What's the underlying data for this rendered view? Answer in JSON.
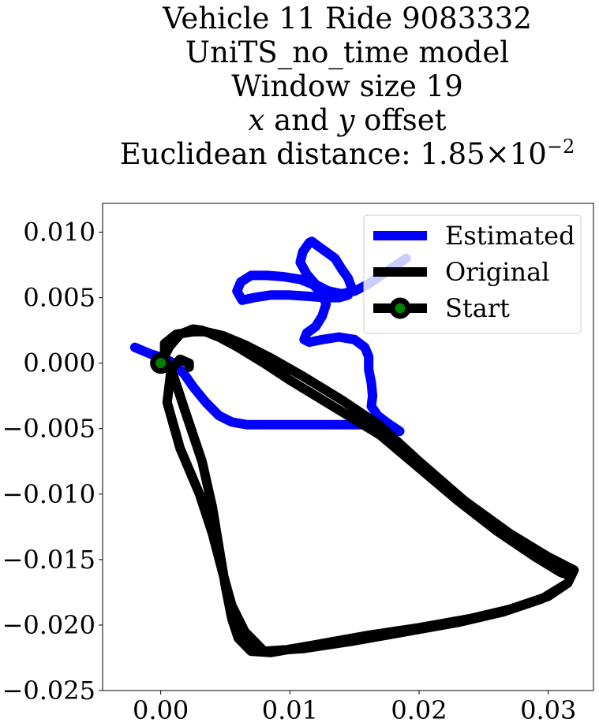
{
  "chart_data": {
    "type": "line",
    "title_lines": [
      "Vehicle 11 Ride 9083332",
      "UniTS_no_time model",
      "Window size 19"
    ],
    "title_offset_line": {
      "x": "x",
      "and": " and ",
      "y": "y",
      "rest": " offset"
    },
    "title_distance": {
      "label": "Euclidean distance: ",
      "mantissa": "1.85",
      "times": "×",
      "base": "10",
      "exponent": "−2"
    },
    "xlabel": "",
    "ylabel": "",
    "xlim": [
      -0.0045,
      0.0335
    ],
    "ylim": [
      -0.025,
      0.0122
    ],
    "xticks": [
      0.0,
      0.01,
      0.02,
      0.03
    ],
    "xtick_labels": [
      "0.00",
      "0.01",
      "0.02",
      "0.03"
    ],
    "yticks": [
      0.01,
      0.005,
      0.0,
      -0.005,
      -0.01,
      -0.015,
      -0.02,
      -0.025
    ],
    "ytick_labels": [
      "0.010",
      "0.005",
      "0.000",
      "−0.005",
      "−0.010",
      "−0.015",
      "−0.020",
      "−0.025"
    ],
    "grid": false,
    "legend_position": "top-right",
    "series": [
      {
        "name": "Estimated",
        "color": "#0000ff",
        "x": [
          0.019,
          0.0175,
          0.016,
          0.015,
          0.014,
          0.013,
          0.012,
          0.0113,
          0.0108,
          0.011,
          0.0115,
          0.0117,
          0.0121,
          0.0128,
          0.0135,
          0.014,
          0.0145,
          0.0148,
          0.0145,
          0.0138,
          0.0128,
          0.0115,
          0.01,
          0.0085,
          0.0072,
          0.0063,
          0.0059,
          0.0062,
          0.007,
          0.0082,
          0.0095,
          0.0108,
          0.0118,
          0.0125,
          0.0128,
          0.0125,
          0.012,
          0.0113,
          0.0111,
          0.0115,
          0.0125,
          0.0138,
          0.015,
          0.0158,
          0.0161,
          0.0161,
          0.0163,
          0.0164,
          0.0163,
          0.0168,
          0.0176,
          0.0182,
          0.0185,
          0.0175,
          0.016,
          0.014,
          0.012,
          0.01,
          0.0082,
          0.0067,
          0.0055,
          0.0045,
          0.0035,
          0.0025,
          0.0018,
          0.001,
          0.0002,
          -0.0008,
          -0.002
        ],
        "y": [
          0.008,
          0.007,
          0.006,
          0.0055,
          0.0053,
          0.0055,
          0.006,
          0.0068,
          0.0077,
          0.0085,
          0.0092,
          0.0093,
          0.009,
          0.0085,
          0.008,
          0.0072,
          0.0065,
          0.0057,
          0.0052,
          0.005,
          0.005,
          0.0051,
          0.0052,
          0.0052,
          0.005,
          0.0048,
          0.0055,
          0.0062,
          0.0067,
          0.0067,
          0.0066,
          0.0064,
          0.006,
          0.0053,
          0.0045,
          0.0036,
          0.0028,
          0.0023,
          0.0018,
          0.0016,
          0.0018,
          0.002,
          0.0018,
          0.0012,
          0.0005,
          -0.0005,
          -0.0015,
          -0.0025,
          -0.0033,
          -0.004,
          -0.0046,
          -0.005,
          -0.0052,
          -0.0048,
          -0.0047,
          -0.0047,
          -0.0047,
          -0.0047,
          -0.0047,
          -0.0047,
          -0.0045,
          -0.004,
          -0.003,
          -0.0018,
          -0.0008,
          0.0,
          0.0004,
          0.0007,
          0.0012
        ]
      },
      {
        "name": "Original",
        "color": "#000000",
        "x": [
          0.0,
          0.0007,
          0.0015,
          0.0025,
          0.0032,
          0.0045,
          0.006,
          0.008,
          0.01,
          0.012,
          0.0145,
          0.017,
          0.02,
          0.023,
          0.026,
          0.029,
          0.031,
          0.0318,
          0.0315,
          0.03,
          0.027,
          0.024,
          0.02,
          0.016,
          0.012,
          0.0085,
          0.007,
          0.006,
          0.0055,
          0.005,
          0.0045,
          0.004,
          0.0032,
          0.002,
          0.001,
          0.0003,
          0.0003,
          0.0012,
          0.0025,
          0.0035,
          0.0048,
          0.0065,
          0.0085,
          0.011,
          0.014,
          0.017,
          0.02,
          0.0235,
          0.027,
          0.03,
          0.032,
          0.0315,
          0.0295,
          0.0265,
          0.023,
          0.019,
          0.015,
          0.011,
          0.008,
          0.0065,
          0.0055,
          0.0048,
          0.004,
          0.003,
          0.0015,
          0.0005,
          0.0008,
          0.0015,
          0.0022,
          0.0022
        ],
        "y": [
          0.0,
          0.0013,
          0.0022,
          0.0026,
          0.0025,
          0.002,
          0.0012,
          0.0,
          -0.0013,
          -0.0025,
          -0.004,
          -0.0055,
          -0.008,
          -0.0105,
          -0.0128,
          -0.0148,
          -0.016,
          -0.0162,
          -0.0168,
          -0.0178,
          -0.0188,
          -0.0195,
          -0.0202,
          -0.0208,
          -0.0215,
          -0.0221,
          -0.022,
          -0.021,
          -0.0195,
          -0.017,
          -0.014,
          -0.011,
          -0.0075,
          -0.004,
          -0.001,
          0.0,
          0.0015,
          0.0022,
          0.0024,
          0.0024,
          0.0021,
          0.0014,
          0.0004,
          -0.001,
          -0.0028,
          -0.0048,
          -0.0075,
          -0.0105,
          -0.013,
          -0.0148,
          -0.0158,
          -0.0168,
          -0.018,
          -0.019,
          -0.0198,
          -0.0205,
          -0.0212,
          -0.0218,
          -0.022,
          -0.0205,
          -0.0185,
          -0.016,
          -0.013,
          -0.01,
          -0.0065,
          -0.003,
          -0.0005,
          0.0003,
          0.0,
          -0.0003
        ]
      }
    ],
    "start_point": {
      "name": "Start",
      "x": 0.0,
      "y": 0.0,
      "edge_color": "#000000",
      "face_color": "#008000"
    }
  }
}
